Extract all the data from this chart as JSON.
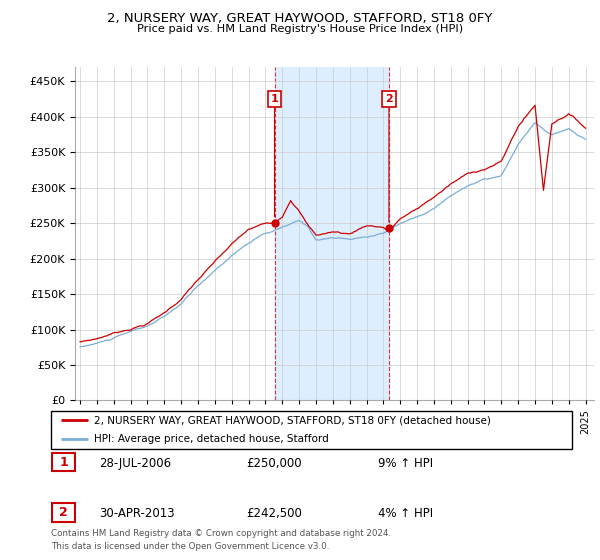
{
  "title": "2, NURSERY WAY, GREAT HAYWOOD, STAFFORD, ST18 0FY",
  "subtitle": "Price paid vs. HM Land Registry's House Price Index (HPI)",
  "legend_line1": "2, NURSERY WAY, GREAT HAYWOOD, STAFFORD, ST18 0FY (detached house)",
  "legend_line2": "HPI: Average price, detached house, Stafford",
  "annotation1_date": "28-JUL-2006",
  "annotation1_price": "£250,000",
  "annotation1_hpi": "9% ↑ HPI",
  "annotation2_date": "30-APR-2013",
  "annotation2_price": "£242,500",
  "annotation2_hpi": "4% ↑ HPI",
  "footer": "Contains HM Land Registry data © Crown copyright and database right 2024.\nThis data is licensed under the Open Government Licence v3.0.",
  "red_color": "#cc0000",
  "blue_color": "#7aaed6",
  "highlight_color": "#ddeeff",
  "grid_color": "#cccccc",
  "box_edge_color": "#cc0000",
  "sale1_t": 2006.54,
  "sale1_price": 250000,
  "sale2_t": 2013.33,
  "sale2_price": 242500,
  "ylim": [
    0,
    470000
  ],
  "yticks": [
    0,
    50000,
    100000,
    150000,
    200000,
    250000,
    300000,
    350000,
    400000,
    450000
  ],
  "xlim_min": 1994.7,
  "xlim_max": 2025.5,
  "hpi_knots_x": [
    1995,
    1996,
    1997,
    1998,
    1999,
    2000,
    2001,
    2002,
    2003,
    2004,
    2005,
    2006,
    2006.54,
    2007,
    2008,
    2008.5,
    2009,
    2010,
    2011,
    2012,
    2013,
    2013.33,
    2014,
    2015,
    2016,
    2017,
    2018,
    2019,
    2020,
    2021,
    2022,
    2023,
    2024,
    2025
  ],
  "hpi_knots_y": [
    75000,
    80000,
    87000,
    95000,
    103000,
    115000,
    133000,
    158000,
    180000,
    202000,
    220000,
    232000,
    235000,
    240000,
    248000,
    240000,
    222000,
    225000,
    222000,
    225000,
    232000,
    235000,
    245000,
    255000,
    268000,
    285000,
    300000,
    308000,
    312000,
    355000,
    385000,
    368000,
    375000,
    360000
  ],
  "red_knots_x": [
    1995,
    1996,
    1997,
    1998,
    1999,
    2000,
    2001,
    2002,
    2003,
    2004,
    2005,
    2006,
    2006.54,
    2007,
    2007.5,
    2008,
    2008.5,
    2009,
    2010,
    2011,
    2012,
    2013,
    2013.33,
    2014,
    2015,
    2016,
    2017,
    2018,
    2019,
    2020,
    2021,
    2022,
    2022.5,
    2023,
    2024,
    2025
  ],
  "red_knots_y": [
    82000,
    87000,
    95000,
    102000,
    110000,
    125000,
    145000,
    172000,
    196000,
    220000,
    240000,
    248000,
    250000,
    260000,
    285000,
    270000,
    250000,
    235000,
    240000,
    237000,
    250000,
    248000,
    242500,
    260000,
    273000,
    290000,
    308000,
    322000,
    330000,
    340000,
    390000,
    420000,
    300000,
    395000,
    410000,
    390000
  ]
}
